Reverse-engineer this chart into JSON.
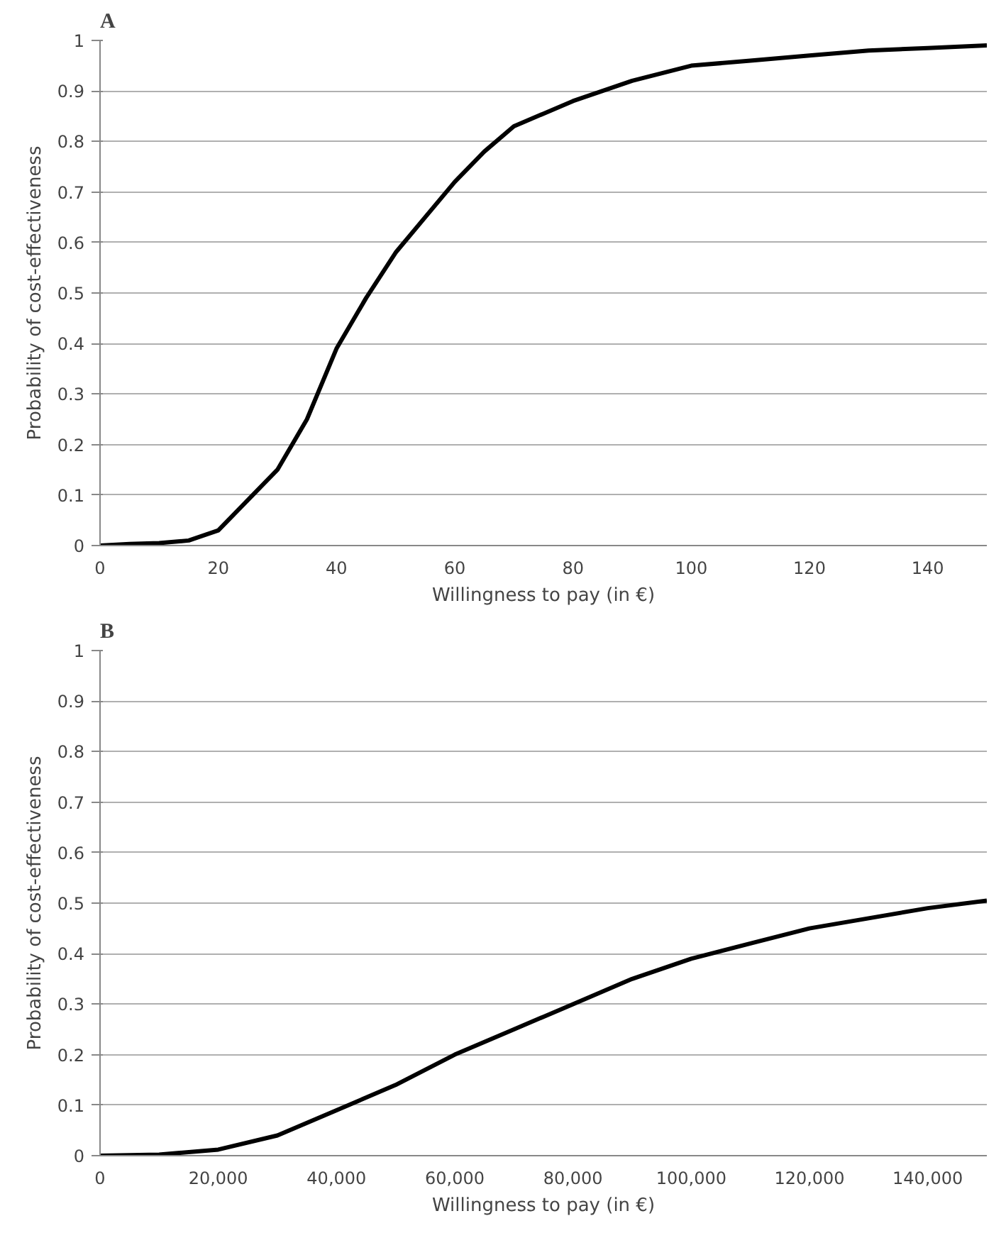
{
  "chart_data": [
    {
      "type": "line",
      "title": "A",
      "xlabel": "Willingness to pay (in €)",
      "ylabel": "Probability of cost-effectiveness",
      "series": [
        {
          "color": "#000000",
          "x": [
            0,
            5,
            10,
            15,
            20,
            25,
            30,
            35,
            40,
            45,
            50,
            55,
            60,
            65,
            70,
            80,
            90,
            100,
            110,
            120,
            130,
            140,
            150
          ],
          "values": [
            0,
            0.003,
            0.005,
            0.01,
            0.03,
            0.09,
            0.15,
            0.25,
            0.39,
            0.49,
            0.58,
            0.65,
            0.72,
            0.78,
            0.83,
            0.88,
            0.92,
            0.95,
            0.96,
            0.97,
            0.98,
            0.985,
            0.99
          ]
        }
      ],
      "xlim": [
        0,
        150
      ],
      "xticks": [
        0,
        20,
        40,
        60,
        80,
        100,
        120,
        140
      ],
      "ylim": [
        0,
        1
      ],
      "yticks": [
        0,
        0.1,
        0.2,
        0.3,
        0.4,
        0.5,
        0.6,
        0.7,
        0.8,
        0.9,
        1
      ],
      "grid": "y",
      "line_style": "solid"
    },
    {
      "type": "line",
      "title": "B",
      "xlabel": "Willingness to pay (in €)",
      "ylabel": "Probability of cost-effectiveness",
      "series": [
        {
          "color": "#000000",
          "x": [
            0,
            10000,
            20000,
            30000,
            40000,
            50000,
            60000,
            70000,
            80000,
            90000,
            100000,
            110000,
            120000,
            130000,
            140000,
            150000
          ],
          "values": [
            0,
            0.002,
            0.012,
            0.04,
            0.09,
            0.14,
            0.2,
            0.25,
            0.3,
            0.35,
            0.39,
            0.42,
            0.45,
            0.47,
            0.49,
            0.505
          ]
        }
      ],
      "xlim": [
        0,
        150000
      ],
      "xticks": [
        0,
        {
          "value": 20000,
          "label": "20,000"
        },
        {
          "value": 40000,
          "label": "40,000"
        },
        {
          "value": 60000,
          "label": "60,000"
        },
        {
          "value": 80000,
          "label": "80,000"
        },
        {
          "value": 100000,
          "label": "100,000"
        },
        {
          "value": 120000,
          "label": "120,000"
        },
        {
          "value": 140000,
          "label": "140,000"
        }
      ],
      "ylim": [
        0,
        1
      ],
      "yticks": [
        0,
        0.1,
        0.2,
        0.3,
        0.4,
        0.5,
        0.6,
        0.7,
        0.8,
        0.9,
        1
      ],
      "grid": "y",
      "line_style": "solid"
    }
  ]
}
